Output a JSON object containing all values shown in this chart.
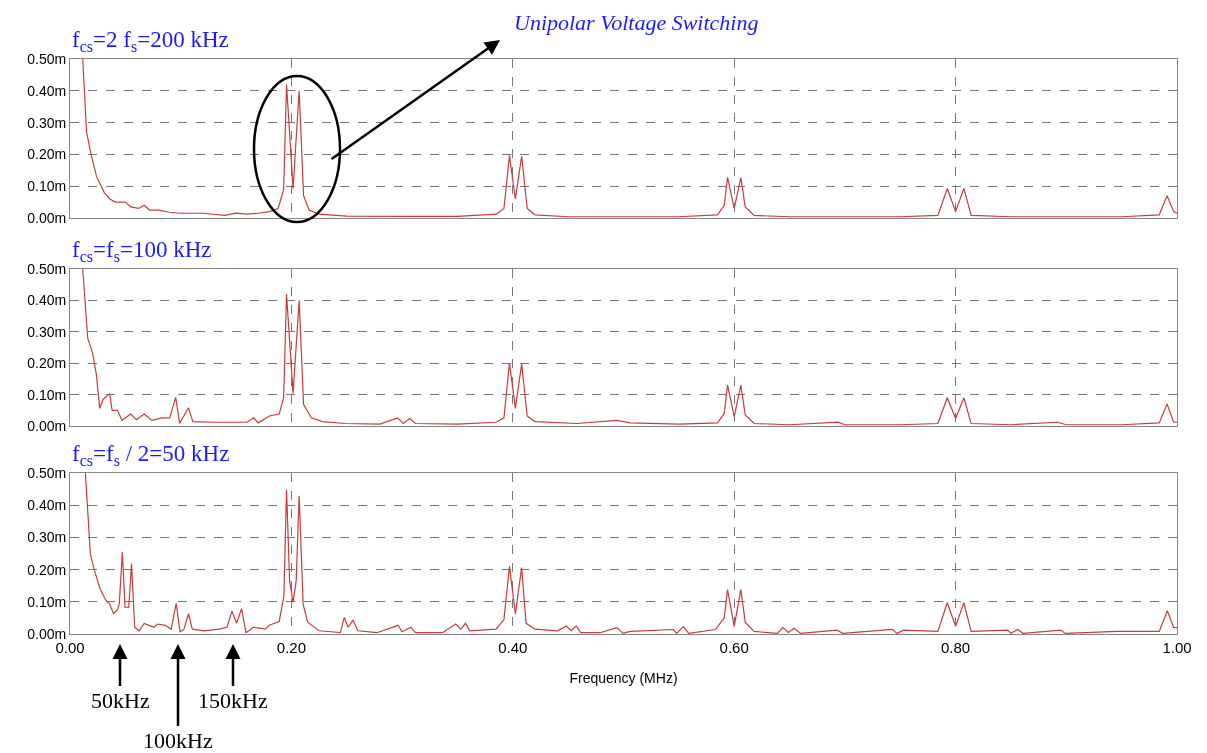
{
  "chart_data": [
    {
      "type": "line",
      "title": "f$_{cs}$=2 f$_{s}$=200 kHz",
      "xlim": [
        0,
        1
      ],
      "xticks": [
        {
          "value": 0,
          "label": null
        },
        {
          "value": 0.2,
          "label": null
        },
        {
          "value": 0.4,
          "label": null
        },
        {
          "value": 0.6,
          "label": null
        },
        {
          "value": 0.8,
          "label": null
        },
        {
          "value": 1,
          "label": null
        }
      ],
      "ylim": [
        0,
        0.5
      ],
      "yticks": [
        {
          "value": 0,
          "label": "0.00m"
        },
        {
          "value": 0.1,
          "label": "0.10m"
        },
        {
          "value": 0.2,
          "label": "0.20m"
        },
        {
          "value": 0.3,
          "label": "0.30m"
        },
        {
          "value": 0.4,
          "label": "0.40m"
        },
        {
          "value": 0.5,
          "label": "0.50m"
        }
      ],
      "grid": true,
      "tick_labels": "y",
      "line_style": "solid",
      "annotations": [
        "Unipolar Voltage Switching"
      ],
      "series": [
        {
          "color": "#c83c3c",
          "x": [
            0.0115,
            0.015,
            0.019,
            0.024,
            0.031,
            0.036,
            0.041,
            0.05,
            0.055,
            0.062,
            0.067,
            0.072,
            0.08,
            0.09,
            0.1,
            0.12,
            0.14,
            0.15,
            0.16,
            0.17,
            0.18,
            0.188,
            0.193,
            0.1956,
            0.2015,
            0.207,
            0.211,
            0.216,
            0.225,
            0.25,
            0.3,
            0.35,
            0.385,
            0.392,
            0.397,
            0.4023,
            0.408,
            0.413,
            0.42,
            0.45,
            0.5,
            0.55,
            0.585,
            0.591,
            0.594,
            0.6,
            0.606,
            0.61,
            0.618,
            0.65,
            0.7,
            0.75,
            0.784,
            0.7925,
            0.8,
            0.8075,
            0.814,
            0.85,
            0.9,
            0.95,
            0.984,
            0.991,
            0.997,
            1.0
          ],
          "values": [
            0.5,
            0.27,
            0.2,
            0.13,
            0.08,
            0.06,
            0.05,
            0.05,
            0.035,
            0.03,
            0.04,
            0.025,
            0.025,
            0.018,
            0.015,
            0.015,
            0.008,
            0.015,
            0.012,
            0.015,
            0.02,
            0.03,
            0.09,
            0.42,
            0.093,
            0.4,
            0.07,
            0.025,
            0.012,
            0.006,
            0.005,
            0.005,
            0.012,
            0.03,
            0.196,
            0.06,
            0.195,
            0.03,
            0.01,
            0.004,
            0.004,
            0.004,
            0.01,
            0.04,
            0.128,
            0.03,
            0.126,
            0.035,
            0.008,
            0.004,
            0.004,
            0.004,
            0.008,
            0.093,
            0.02,
            0.093,
            0.008,
            0.004,
            0.004,
            0.004,
            0.01,
            0.07,
            0.02,
            0.015
          ]
        }
      ]
    },
    {
      "type": "line",
      "title": "f$_{cs}$=f$_{s}$=100 kHz",
      "xlim": [
        0,
        1
      ],
      "xticks": [
        {
          "value": 0,
          "label": null
        },
        {
          "value": 0.2,
          "label": null
        },
        {
          "value": 0.4,
          "label": null
        },
        {
          "value": 0.6,
          "label": null
        },
        {
          "value": 0.8,
          "label": null
        },
        {
          "value": 1,
          "label": null
        }
      ],
      "ylim": [
        0,
        0.5
      ],
      "yticks": [
        {
          "value": 0,
          "label": "0.00m"
        },
        {
          "value": 0.1,
          "label": "0.10m"
        },
        {
          "value": 0.2,
          "label": "0.20m"
        },
        {
          "value": 0.3,
          "label": "0.30m"
        },
        {
          "value": 0.4,
          "label": "0.40m"
        },
        {
          "value": 0.5,
          "label": "0.50m"
        }
      ],
      "grid": true,
      "tick_labels": "y",
      "line_style": "solid",
      "series": [
        {
          "color": "#c83c3c",
          "x": [
            0.0115,
            0.016,
            0.0204,
            0.0239,
            0.0268,
            0.03,
            0.0358,
            0.038,
            0.0428,
            0.047,
            0.0549,
            0.06,
            0.067,
            0.074,
            0.083,
            0.09,
            0.0955,
            0.099,
            0.107,
            0.111,
            0.13,
            0.16,
            0.166,
            0.17,
            0.18,
            0.189,
            0.193,
            0.1956,
            0.2015,
            0.207,
            0.211,
            0.218,
            0.228,
            0.249,
            0.28,
            0.296,
            0.301,
            0.307,
            0.312,
            0.35,
            0.385,
            0.392,
            0.397,
            0.4023,
            0.408,
            0.413,
            0.42,
            0.458,
            0.494,
            0.506,
            0.55,
            0.585,
            0.591,
            0.594,
            0.6,
            0.606,
            0.61,
            0.618,
            0.65,
            0.694,
            0.7,
            0.75,
            0.784,
            0.7925,
            0.8,
            0.8075,
            0.814,
            0.85,
            0.892,
            0.9,
            0.95,
            0.984,
            0.991,
            0.997,
            1.0
          ],
          "values": [
            0.5,
            0.28,
            0.233,
            0.162,
            0.056,
            0.085,
            0.103,
            0.05,
            0.05,
            0.018,
            0.038,
            0.02,
            0.038,
            0.018,
            0.026,
            0.026,
            0.091,
            0.008,
            0.058,
            0.014,
            0.012,
            0.012,
            0.026,
            0.01,
            0.032,
            0.038,
            0.091,
            0.42,
            0.103,
            0.4,
            0.068,
            0.026,
            0.014,
            0.008,
            0.006,
            0.026,
            0.008,
            0.024,
            0.008,
            0.006,
            0.012,
            0.026,
            0.2,
            0.056,
            0.198,
            0.032,
            0.014,
            0.008,
            0.018,
            0.01,
            0.006,
            0.01,
            0.04,
            0.13,
            0.03,
            0.13,
            0.035,
            0.008,
            0.004,
            0.012,
            0.004,
            0.004,
            0.008,
            0.09,
            0.024,
            0.09,
            0.008,
            0.004,
            0.012,
            0.004,
            0.004,
            0.01,
            0.07,
            0.012,
            0.012
          ]
        }
      ]
    },
    {
      "type": "line",
      "title": "f$_{cs}$=f$_{s}$ / 2=50 kHz",
      "xlabel": "Frequency (MHz)",
      "xlim": [
        0,
        1
      ],
      "xticks": [
        {
          "value": 0,
          "label": "0.00"
        },
        {
          "value": 0.2,
          "label": "0.20"
        },
        {
          "value": 0.4,
          "label": "0.40"
        },
        {
          "value": 0.6,
          "label": "0.60"
        },
        {
          "value": 0.8,
          "label": "0.80"
        },
        {
          "value": 1,
          "label": "1.00"
        }
      ],
      "ylim": [
        0,
        0.5
      ],
      "yticks": [
        {
          "value": 0,
          "label": "0.00m"
        },
        {
          "value": 0.1,
          "label": "0.10m"
        },
        {
          "value": 0.2,
          "label": "0.20m"
        },
        {
          "value": 0.3,
          "label": "0.30m"
        },
        {
          "value": 0.4,
          "label": "0.40m"
        },
        {
          "value": 0.5,
          "label": "0.50m"
        }
      ],
      "grid": true,
      "line_style": "solid",
      "annotations": [
        "50kHz",
        "100kHz",
        "150kHz"
      ],
      "series": [
        {
          "color": "#c83c3c",
          "x": [
            0.0139,
            0.0184,
            0.0219,
            0.0272,
            0.0324,
            0.0359,
            0.0393,
            0.0427,
            0.0445,
            0.0473,
            0.0497,
            0.0531,
            0.0556,
            0.0584,
            0.0625,
            0.067,
            0.0757,
            0.0792,
            0.086,
            0.0914,
            0.0959,
            0.0994,
            0.103,
            0.107,
            0.1105,
            0.121,
            0.1348,
            0.1418,
            0.1463,
            0.1505,
            0.155,
            0.159,
            0.166,
            0.1765,
            0.18,
            0.189,
            0.1932,
            0.1956,
            0.1984,
            0.2015,
            0.2043,
            0.207,
            0.2106,
            0.2148,
            0.225,
            0.236,
            0.2442,
            0.2477,
            0.2512,
            0.2557,
            0.26,
            0.2773,
            0.2964,
            0.2999,
            0.3079,
            0.312,
            0.3364,
            0.3485,
            0.353,
            0.3572,
            0.3613,
            0.385,
            0.392,
            0.397,
            0.4023,
            0.408,
            0.412,
            0.42,
            0.4406,
            0.4482,
            0.4527,
            0.4572,
            0.4614,
            0.479,
            0.494,
            0.4996,
            0.506,
            0.545,
            0.548,
            0.554,
            0.559,
            0.583,
            0.591,
            0.594,
            0.6,
            0.606,
            0.61,
            0.618,
            0.639,
            0.644,
            0.649,
            0.654,
            0.66,
            0.693,
            0.698,
            0.743,
            0.747,
            0.753,
            0.784,
            0.7925,
            0.8,
            0.8075,
            0.814,
            0.847,
            0.85,
            0.856,
            0.861,
            0.895,
            0.899,
            0.946,
            0.955,
            0.984,
            0.9913,
            0.997,
            1.0
          ],
          "values": [
            0.5,
            0.248,
            0.2,
            0.14,
            0.105,
            0.093,
            0.063,
            0.075,
            0.093,
            0.254,
            0.083,
            0.083,
            0.218,
            0.021,
            0.01,
            0.033,
            0.021,
            0.031,
            0.027,
            0.015,
            0.095,
            0.007,
            0.015,
            0.063,
            0.015,
            0.01,
            0.015,
            0.021,
            0.071,
            0.033,
            0.079,
            0.004,
            0.021,
            0.015,
            0.027,
            0.039,
            0.117,
            0.448,
            0.164,
            0.099,
            0.164,
            0.429,
            0.093,
            0.036,
            0.01,
            0.007,
            0.004,
            0.051,
            0.021,
            0.043,
            0.01,
            0.004,
            0.027,
            0.007,
            0.021,
            0.004,
            0.004,
            0.031,
            0.015,
            0.033,
            0.01,
            0.015,
            0.045,
            0.21,
            0.063,
            0.206,
            0.033,
            0.015,
            0.01,
            0.025,
            0.01,
            0.025,
            0.004,
            0.004,
            0.02,
            0.002,
            0.008,
            0.014,
            0.002,
            0.023,
            0.002,
            0.014,
            0.05,
            0.138,
            0.024,
            0.138,
            0.036,
            0.008,
            0.002,
            0.02,
            0.005,
            0.018,
            0.002,
            0.012,
            0.002,
            0.014,
            0.002,
            0.012,
            0.008,
            0.097,
            0.024,
            0.097,
            0.008,
            0.012,
            0.002,
            0.014,
            0.002,
            0.012,
            0.002,
            0.008,
            0.008,
            0.008,
            0.072,
            0.02,
            0.02
          ]
        }
      ]
    }
  ]
}
